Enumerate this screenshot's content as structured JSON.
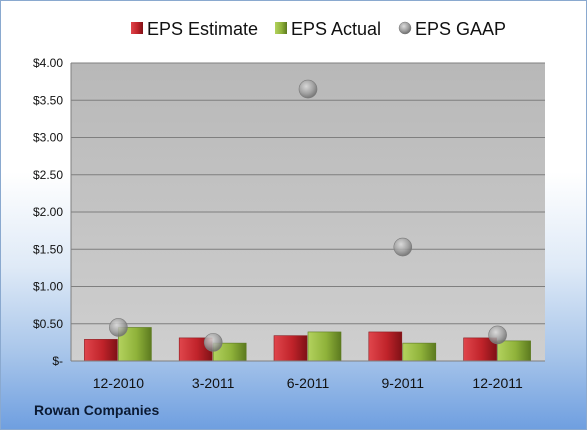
{
  "company_label": "Rowan Companies",
  "colors": {
    "estimate": "#c0232a",
    "actual": "#8fb23a",
    "gaap": "#a5a5a5",
    "plot_bg": "#bebebe"
  },
  "chart_data": {
    "type": "bar",
    "categories": [
      "12-2010",
      "3-2011",
      "6-2011",
      "9-2011",
      "12-2011"
    ],
    "series": [
      {
        "name": "EPS Estimate",
        "type": "bar",
        "values": [
          0.29,
          0.31,
          0.34,
          0.39,
          0.31
        ]
      },
      {
        "name": "EPS Actual",
        "type": "bar",
        "values": [
          0.45,
          0.24,
          0.39,
          0.24,
          0.27
        ]
      },
      {
        "name": "EPS GAAP",
        "type": "scatter",
        "values": [
          0.45,
          0.25,
          3.65,
          1.53,
          0.35
        ]
      }
    ],
    "ylim": [
      0,
      4.0
    ],
    "yticks": [
      0,
      0.5,
      1.0,
      1.5,
      2.0,
      2.5,
      3.0,
      3.5,
      4.0
    ],
    "ytick_labels": [
      "$-",
      "$0.50",
      "$1.00",
      "$1.50",
      "$2.00",
      "$2.50",
      "$3.00",
      "$3.50",
      "$4.00"
    ],
    "legend_position": "top",
    "grid": true
  }
}
